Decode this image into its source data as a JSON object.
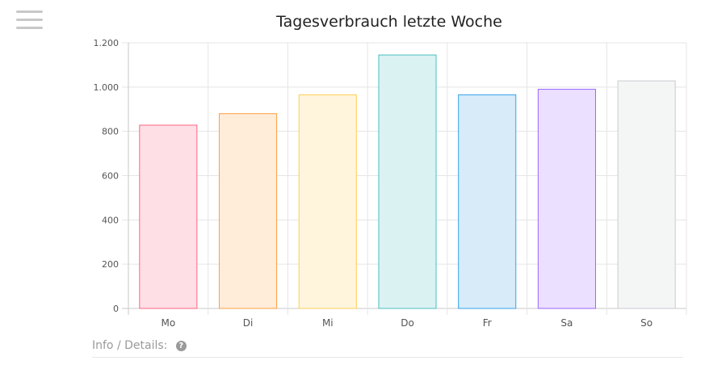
{
  "menu": {
    "icon": "hamburger-menu-icon"
  },
  "chart_data": {
    "type": "bar",
    "title": "Tagesverbrauch letzte Woche",
    "xlabel": "",
    "ylabel": "",
    "categories": [
      "Mo",
      "Di",
      "Mi",
      "Do",
      "Fr",
      "Sa",
      "So"
    ],
    "values": [
      828,
      880,
      965,
      1145,
      965,
      990,
      1028
    ],
    "ylim": [
      0,
      1200
    ],
    "yticks": [
      0,
      200,
      400,
      600,
      800,
      1000,
      1200
    ],
    "ytick_labels": [
      "0",
      "200",
      "400",
      "600",
      "800",
      "1.000",
      "1.200"
    ],
    "grid": true,
    "legend": "none",
    "bar_fill_colors": [
      "#ffdfe6",
      "#ffecd9",
      "#fff5dd",
      "#dbf2f2",
      "#d7ebf9",
      "#ebe0ff",
      "#f4f5f5"
    ],
    "bar_border_colors": [
      "#ff6384",
      "#ff9f40",
      "#ffcd56",
      "#4bc0c0",
      "#36a2eb",
      "#9966ff",
      "#c9cbcf"
    ]
  },
  "info": {
    "label": "Info / Details:",
    "help_symbol": "?",
    "help_icon": "question-circle-icon"
  }
}
